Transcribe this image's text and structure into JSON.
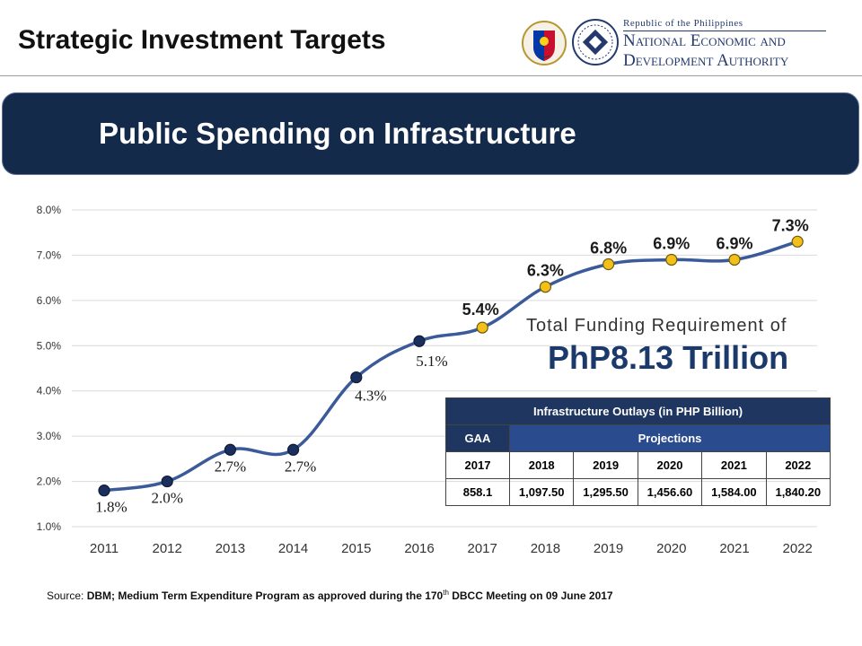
{
  "header": {
    "title": "Strategic Investment Targets",
    "org_line1": "Republic of the Philippines",
    "org_line2": "National Economic and",
    "org_line3": "Development Authority"
  },
  "banner": {
    "title": "Public Spending on Infrastructure"
  },
  "funding": {
    "label": "Total Funding Requirement of",
    "value": "PhP8.13 Trillion"
  },
  "table": {
    "title": "Infrastructure Outlays (in PHP Billion)",
    "gaa_label": "GAA",
    "projections_label": "Projections",
    "years": [
      "2017",
      "2018",
      "2019",
      "2020",
      "2021",
      "2022"
    ],
    "values": [
      "858.1",
      "1,097.50",
      "1,295.50",
      "1,456.60",
      "1,584.00",
      "1,840.20"
    ]
  },
  "source": {
    "prefix": "Source: ",
    "text_a": "DBM; Medium Term Expenditure Program as approved during the 170",
    "sup": "th",
    "text_b": " DBCC Meeting on 09 June 2017"
  },
  "colors": {
    "navy": "#142a4b",
    "line": "#3b5a9a",
    "actual_marker": "#1b2f5e",
    "projection_marker": "#f2c018"
  },
  "chart_data": {
    "type": "line",
    "categories": [
      "2011",
      "2012",
      "2013",
      "2014",
      "2015",
      "2016",
      "2017",
      "2018",
      "2019",
      "2020",
      "2021",
      "2022"
    ],
    "values": [
      1.8,
      2.0,
      2.7,
      2.7,
      4.3,
      5.1,
      5.4,
      6.3,
      6.8,
      6.9,
      6.9,
      7.3
    ],
    "value_labels": [
      "1.8%",
      "2.0%",
      "2.7%",
      "2.7%",
      "4.3%",
      "5.1%",
      "5.4%",
      "6.3%",
      "6.8%",
      "6.9%",
      "6.9%",
      "7.3%"
    ],
    "y_ticks": [
      "1.0%",
      "2.0%",
      "3.0%",
      "4.0%",
      "5.0%",
      "6.0%",
      "7.0%",
      "8.0%"
    ],
    "ylim": [
      1.0,
      8.0
    ],
    "projection_start_index": 6,
    "grid": true,
    "title": "",
    "xlabel": "",
    "ylabel": ""
  }
}
